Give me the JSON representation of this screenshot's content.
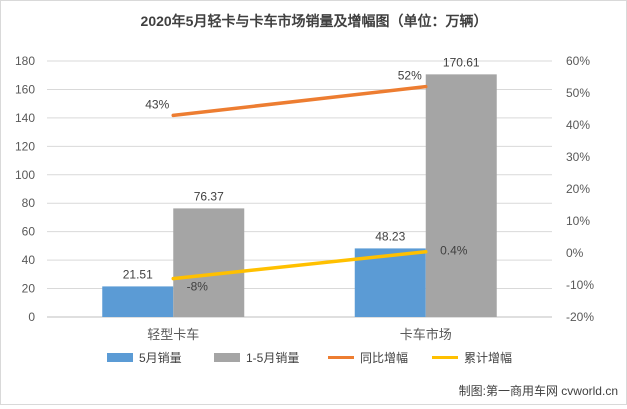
{
  "chart_data": {
    "type": "bar",
    "title": "2020年5月轻卡与卡车市场销量及增幅图（单位：万辆）",
    "categories": [
      "轻型卡车",
      "卡车市场"
    ],
    "series": [
      {
        "name": "5月销量",
        "kind": "bar",
        "axis": "left",
        "color": "#5b9bd5",
        "values": [
          21.51,
          48.23
        ],
        "labels": [
          "21.51",
          "48.23"
        ]
      },
      {
        "name": "1-5月销量",
        "kind": "bar",
        "axis": "left",
        "color": "#a5a5a5",
        "values": [
          76.37,
          170.61
        ],
        "labels": [
          "76.37",
          "170.61"
        ]
      },
      {
        "name": "同比增幅",
        "kind": "line",
        "axis": "right",
        "color": "#ed7d31",
        "values": [
          43,
          52
        ],
        "labels": [
          "43%",
          "52%"
        ]
      },
      {
        "name": "累计增幅",
        "kind": "line",
        "axis": "right",
        "color": "#ffc000",
        "values": [
          -8,
          0.4
        ],
        "labels": [
          "-8%",
          "0.4%"
        ]
      }
    ],
    "y_left": {
      "min": 0,
      "max": 180,
      "ticks": [
        "0",
        "20",
        "40",
        "60",
        "80",
        "100",
        "120",
        "140",
        "160",
        "180"
      ]
    },
    "y_right": {
      "min": -20,
      "max": 60,
      "ticks": [
        "-20%",
        "-10%",
        "0%",
        "10%",
        "20%",
        "30%",
        "40%",
        "50%",
        "60%"
      ]
    },
    "grid": true,
    "legend": "bottom"
  },
  "credit": "制图:第一商用车网 cvworld.cn"
}
